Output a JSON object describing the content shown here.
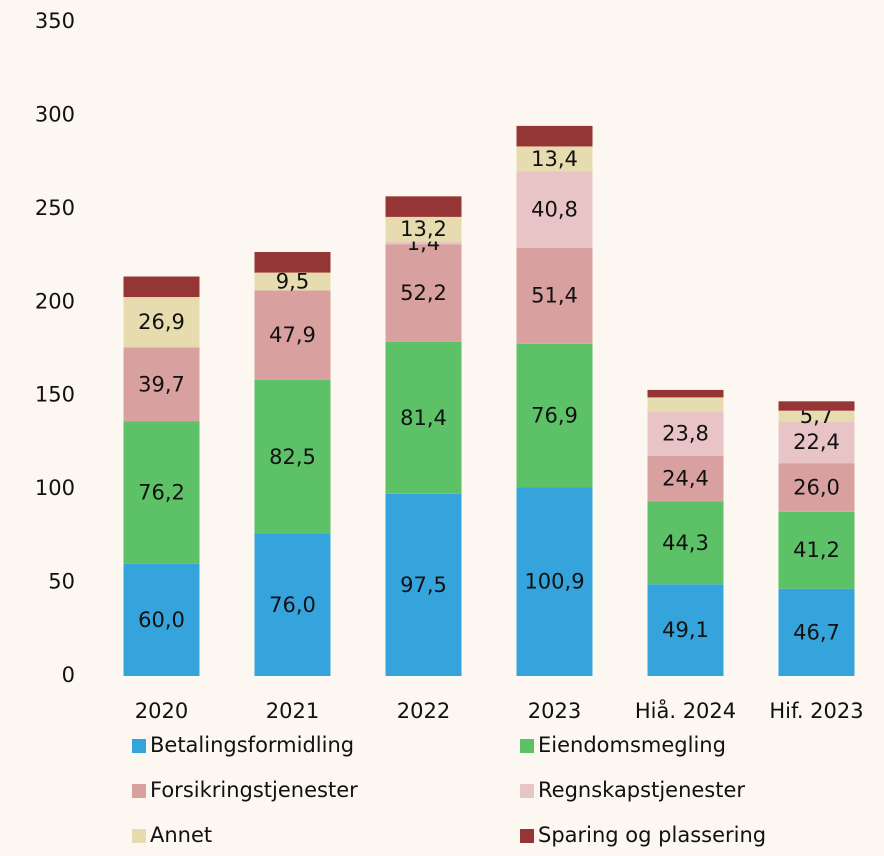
{
  "chart_data": {
    "type": "stacked_bar",
    "categories": [
      "2020",
      "2021",
      "2022",
      "2023",
      "Hiå. 2024",
      "Hif. 2023"
    ],
    "series": [
      {
        "name": "Betalingsformidling",
        "color": "#35a4dc",
        "values": [
          60.0,
          76.0,
          97.5,
          100.9,
          49.1,
          46.7
        ],
        "value_labels": [
          "60,0",
          "76,0",
          "97,5",
          "100,9",
          "49,1",
          "46,7"
        ]
      },
      {
        "name": "Eiendomsmegling",
        "color": "#5dc267",
        "values": [
          76.2,
          82.5,
          81.4,
          76.9,
          44.3,
          41.2
        ],
        "value_labels": [
          "76,2",
          "82,5",
          "81,4",
          "76,9",
          "44,3",
          "41,2"
        ]
      },
      {
        "name": "Forsikringstjenester",
        "color": "#d9a0a0",
        "values": [
          39.7,
          47.9,
          52.2,
          51.4,
          24.4,
          26.0
        ],
        "value_labels": [
          "39,7",
          "47,9",
          "52,2",
          "51,4",
          "24,4",
          "26,0"
        ]
      },
      {
        "name": "Regnskapstjenester",
        "color": "#e8c4c6",
        "values": [
          0,
          0,
          1.4,
          40.8,
          23.8,
          22.4
        ],
        "value_labels": [
          null,
          null,
          "1,4",
          "40,8",
          "23,8",
          "22,4"
        ]
      },
      {
        "name": "Annet",
        "color": "#e6dcb0",
        "values": [
          26.9,
          9.5,
          13.2,
          13.4,
          7.5,
          5.7
        ],
        "value_labels": [
          "26,9",
          "9,5",
          "13,2",
          "13,4",
          null,
          "5,7"
        ]
      },
      {
        "name": "Sparing og plassering",
        "color": "#953535",
        "values": [
          11,
          11,
          11,
          11,
          4,
          5
        ],
        "value_labels": [
          null,
          null,
          null,
          null,
          null,
          null
        ]
      }
    ],
    "ylim": [
      0,
      350
    ],
    "yticks": [
      0,
      50,
      100,
      150,
      200,
      250,
      300,
      350
    ],
    "grid": false
  }
}
